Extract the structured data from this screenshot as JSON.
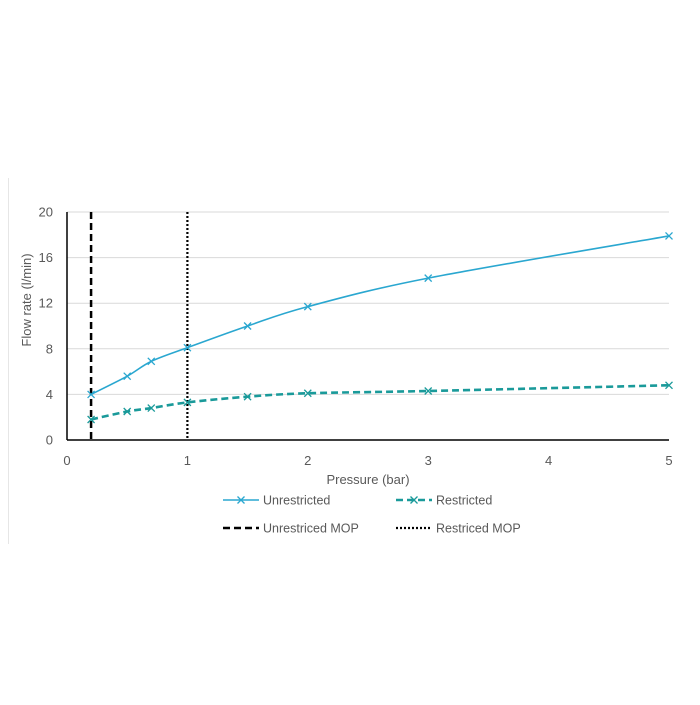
{
  "chart_data": {
    "type": "line",
    "xlabel": "Pressure (bar)",
    "ylabel": "Flow rate (l/min)",
    "xlim": [
      0,
      5
    ],
    "ylim": [
      0,
      20
    ],
    "x_ticks": [
      0,
      1,
      2,
      3,
      4,
      5
    ],
    "y_ticks": [
      0,
      4,
      8,
      12,
      16,
      20
    ],
    "grid": "horizontal",
    "legend_position": "bottom",
    "series": [
      {
        "name": "Unrestricted",
        "color": "#2aa7d0",
        "style": "solid",
        "marker": "x",
        "x": [
          0.2,
          0.5,
          0.7,
          1.0,
          1.5,
          2.0,
          3.0,
          5.0
        ],
        "y": [
          4.0,
          5.6,
          6.9,
          8.1,
          10.0,
          11.7,
          14.2,
          17.9
        ]
      },
      {
        "name": "Restricted",
        "color": "#1a9a9a",
        "style": "dashed",
        "marker": "x",
        "x": [
          0.2,
          0.5,
          0.7,
          1.0,
          1.5,
          2.0,
          3.0,
          5.0
        ],
        "y": [
          1.8,
          2.5,
          2.8,
          3.3,
          3.8,
          4.1,
          4.3,
          4.8
        ]
      }
    ],
    "vlines": [
      {
        "name": "Unrestriced MOP",
        "x": 0.2,
        "color": "#000000",
        "style": "dashed"
      },
      {
        "name": "Restriced MOP",
        "x": 1.0,
        "color": "#000000",
        "style": "dotted"
      }
    ]
  }
}
